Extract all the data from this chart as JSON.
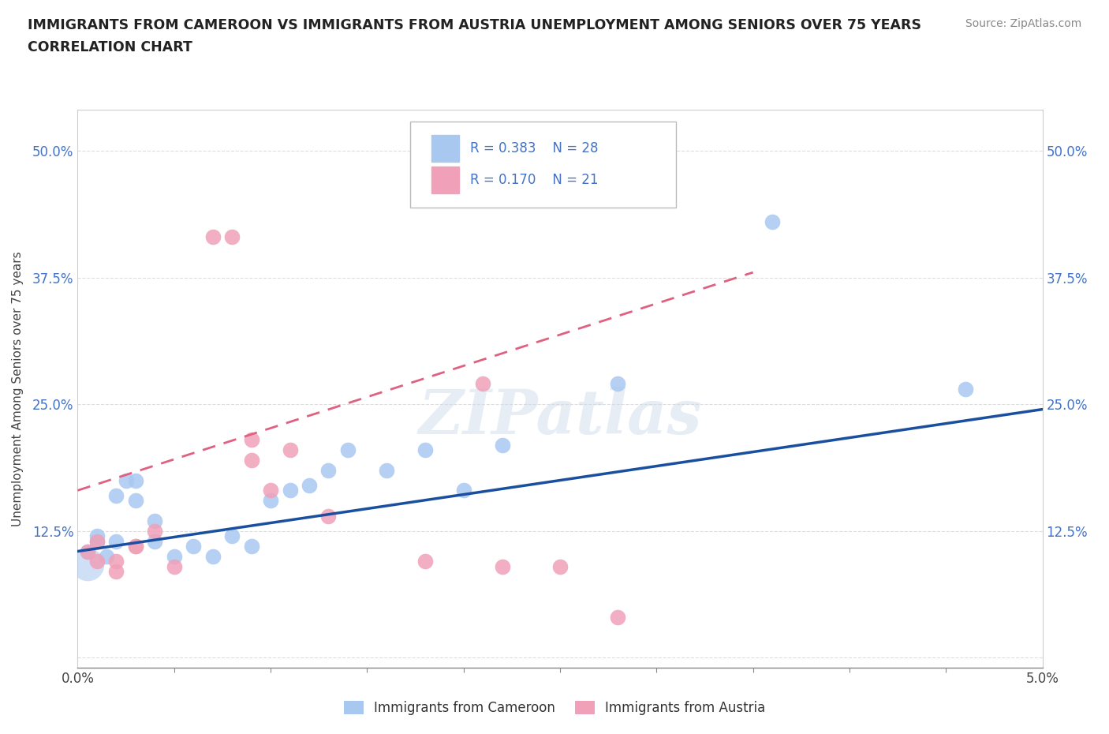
{
  "title_line1": "IMMIGRANTS FROM CAMEROON VS IMMIGRANTS FROM AUSTRIA UNEMPLOYMENT AMONG SENIORS OVER 75 YEARS",
  "title_line2": "CORRELATION CHART",
  "source_text": "Source: ZipAtlas.com",
  "ylabel": "Unemployment Among Seniors over 75 years",
  "xlim": [
    0.0,
    0.05
  ],
  "ylim": [
    -0.01,
    0.54
  ],
  "watermark": "ZIPatlas",
  "color_cameroon": "#A8C8F0",
  "color_austria": "#F0A0B8",
  "line_color_cameroon": "#1A4FA0",
  "line_color_austria": "#E06080",
  "cameroon_x": [
    0.0005,
    0.001,
    0.001,
    0.0015,
    0.002,
    0.002,
    0.0025,
    0.003,
    0.003,
    0.004,
    0.004,
    0.005,
    0.006,
    0.007,
    0.008,
    0.009,
    0.01,
    0.011,
    0.012,
    0.013,
    0.014,
    0.016,
    0.018,
    0.02,
    0.022,
    0.028,
    0.036,
    0.046
  ],
  "cameroon_y": [
    0.105,
    0.115,
    0.12,
    0.1,
    0.115,
    0.16,
    0.175,
    0.155,
    0.175,
    0.115,
    0.135,
    0.1,
    0.11,
    0.1,
    0.12,
    0.11,
    0.155,
    0.165,
    0.17,
    0.185,
    0.205,
    0.185,
    0.205,
    0.165,
    0.21,
    0.27,
    0.43,
    0.265
  ],
  "cameroon_large_x": [
    0.0005
  ],
  "cameroon_large_y": [
    0.105
  ],
  "austria_x": [
    0.0005,
    0.001,
    0.001,
    0.002,
    0.002,
    0.003,
    0.003,
    0.004,
    0.005,
    0.007,
    0.008,
    0.009,
    0.009,
    0.01,
    0.011,
    0.013,
    0.018,
    0.021,
    0.022,
    0.025,
    0.028
  ],
  "austria_y": [
    0.105,
    0.095,
    0.115,
    0.085,
    0.095,
    0.11,
    0.11,
    0.125,
    0.09,
    0.415,
    0.415,
    0.195,
    0.215,
    0.165,
    0.205,
    0.14,
    0.095,
    0.27,
    0.09,
    0.09,
    0.04
  ],
  "cam_line_x": [
    0.0,
    0.05
  ],
  "cam_line_y": [
    0.105,
    0.245
  ],
  "aut_line_x": [
    0.0,
    0.035
  ],
  "aut_line_y": [
    0.165,
    0.38
  ],
  "bg_color": "#FFFFFF",
  "grid_color": "#DDDDDD",
  "ytick_vals": [
    0.0,
    0.125,
    0.25,
    0.375,
    0.5
  ],
  "yticklabels": [
    "",
    "12.5%",
    "25.0%",
    "37.5%",
    "50.0%"
  ],
  "xtick_vals": [
    0.0,
    0.05
  ],
  "xticklabels": [
    "0.0%",
    "5.0%"
  ]
}
